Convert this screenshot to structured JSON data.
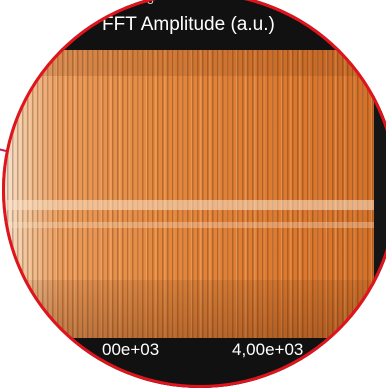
{
  "header": {
    "title": "FFT Amplitude (a.u.)",
    "fragment": "3"
  },
  "x_axis": {
    "ticks": [
      "00e+03",
      "4,00e+03"
    ]
  },
  "colors": {
    "lens_border": "#e0141c",
    "pointer_line": "#c2185b",
    "spectrogram_base": "#e5883e",
    "panel_background": "#111111"
  },
  "icons": [
    "magnifier-lens"
  ]
}
